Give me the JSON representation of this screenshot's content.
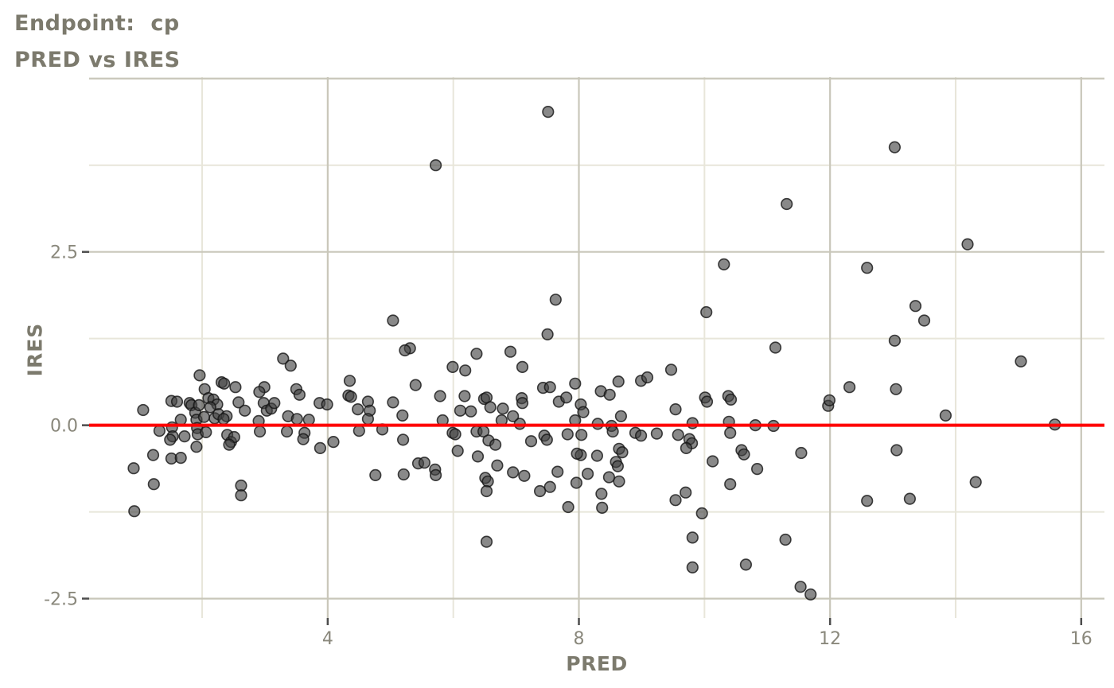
{
  "chart_data": {
    "type": "scatter",
    "title": "Endpoint:  cp",
    "subtitle": "PRED vs IRES",
    "xlabel": "PRED",
    "ylabel": "IRES",
    "x_ticks": [
      4,
      8,
      12,
      16
    ],
    "x_tick_labels": [
      "4",
      "8",
      "12",
      "16"
    ],
    "x_minor": [
      2,
      6,
      10,
      14
    ],
    "y_ticks": [
      2.5,
      0.0,
      -2.5
    ],
    "y_tick_labels": [
      "2.5",
      "0.0",
      "-2.5"
    ],
    "y_major_unlabeled": [
      5.0
    ],
    "y_minor": [
      3.75,
      1.25,
      -1.25
    ],
    "xlim": [
      0.2,
      16.37
    ],
    "ylim": [
      -2.78,
      5.02
    ],
    "grid": "on",
    "legend": "none",
    "refline": {
      "y": 0.0
    },
    "points": [
      [
        5.72,
        3.75
      ],
      [
        7.51,
        4.52
      ],
      [
        13.03,
        4.01
      ],
      [
        11.31,
        3.19
      ],
      [
        10.31,
        2.32
      ],
      [
        14.19,
        2.61
      ],
      [
        12.59,
        2.27
      ],
      [
        5.04,
        1.51
      ],
      [
        7.63,
        1.81
      ],
      [
        10.03,
        1.63
      ],
      [
        13.36,
        1.72
      ],
      [
        13.5,
        1.51
      ],
      [
        7.5,
        1.31
      ],
      [
        13.03,
        1.22
      ],
      [
        5.31,
        1.11
      ],
      [
        6.91,
        1.06
      ],
      [
        11.13,
        1.12
      ],
      [
        5.23,
        1.08
      ],
      [
        6.37,
        1.03
      ],
      [
        1.06,
        0.22
      ],
      [
        1.22,
        -0.43
      ],
      [
        0.91,
        -0.62
      ],
      [
        1.23,
        -0.85
      ],
      [
        0.92,
        -1.24
      ],
      [
        1.32,
        -0.08
      ],
      [
        1.51,
        0.35
      ],
      [
        1.6,
        0.34
      ],
      [
        1.52,
        -0.03
      ],
      [
        1.53,
        -0.16
      ],
      [
        1.49,
        -0.21
      ],
      [
        1.66,
        0.08
      ],
      [
        1.72,
        -0.16
      ],
      [
        1.51,
        -0.48
      ],
      [
        1.66,
        -0.47
      ],
      [
        1.8,
        0.32
      ],
      [
        1.83,
        0.29
      ],
      [
        1.89,
        0.18
      ],
      [
        1.96,
        0.72
      ],
      [
        1.95,
        0.29
      ],
      [
        1.91,
        0.08
      ],
      [
        1.92,
        -0.04
      ],
      [
        1.93,
        -0.13
      ],
      [
        2.03,
        0.12
      ],
      [
        2.06,
        -0.1
      ],
      [
        1.91,
        -0.31
      ],
      [
        2.04,
        0.52
      ],
      [
        2.1,
        0.39
      ],
      [
        2.18,
        0.37
      ],
      [
        2.24,
        0.3
      ],
      [
        2.13,
        0.26
      ],
      [
        2.2,
        0.1
      ],
      [
        2.26,
        0.16
      ],
      [
        2.31,
        0.62
      ],
      [
        2.35,
        0.6
      ],
      [
        2.53,
        0.55
      ],
      [
        2.58,
        0.33
      ],
      [
        2.68,
        0.21
      ],
      [
        2.39,
        0.13
      ],
      [
        2.34,
        0.09
      ],
      [
        2.4,
        -0.14
      ],
      [
        2.46,
        -0.24
      ],
      [
        2.51,
        -0.17
      ],
      [
        2.43,
        -0.28
      ],
      [
        2.62,
        -0.87
      ],
      [
        2.62,
        -1.01
      ],
      [
        2.9,
        0.06
      ],
      [
        2.92,
        -0.09
      ],
      [
        2.98,
        0.32
      ],
      [
        2.99,
        0.55
      ],
      [
        2.91,
        0.48
      ],
      [
        3.03,
        0.21
      ],
      [
        3.1,
        0.24
      ],
      [
        3.15,
        0.32
      ],
      [
        3.29,
        0.96
      ],
      [
        3.41,
        0.86
      ],
      [
        3.5,
        0.52
      ],
      [
        3.55,
        0.44
      ],
      [
        3.37,
        0.13
      ],
      [
        3.51,
        0.09
      ],
      [
        3.7,
        0.08
      ],
      [
        3.35,
        -0.09
      ],
      [
        3.63,
        -0.11
      ],
      [
        3.61,
        -0.2
      ],
      [
        3.87,
        0.32
      ],
      [
        3.99,
        0.3
      ],
      [
        3.88,
        -0.33
      ],
      [
        4.09,
        -0.24
      ],
      [
        4.35,
        0.64
      ],
      [
        4.33,
        0.43
      ],
      [
        4.37,
        0.41
      ],
      [
        4.48,
        0.23
      ],
      [
        4.64,
        0.34
      ],
      [
        4.67,
        0.21
      ],
      [
        4.64,
        0.09
      ],
      [
        4.5,
        -0.08
      ],
      [
        4.87,
        -0.06
      ],
      [
        4.76,
        -0.72
      ],
      [
        5.04,
        0.33
      ],
      [
        5.19,
        0.14
      ],
      [
        5.2,
        -0.21
      ],
      [
        5.4,
        0.58
      ],
      [
        5.44,
        -0.55
      ],
      [
        5.54,
        -0.54
      ],
      [
        5.71,
        -0.64
      ],
      [
        5.79,
        0.42
      ],
      [
        5.83,
        0.07
      ],
      [
        5.99,
        0.84
      ],
      [
        5.99,
        -0.11
      ],
      [
        5.21,
        -0.71
      ],
      [
        5.72,
        -0.72
      ],
      [
        6.19,
        0.79
      ],
      [
        6.18,
        0.42
      ],
      [
        6.49,
        0.38
      ],
      [
        6.53,
        0.4
      ],
      [
        6.59,
        0.26
      ],
      [
        6.79,
        0.24
      ],
      [
        6.11,
        0.21
      ],
      [
        6.28,
        0.2
      ],
      [
        6.77,
        0.07
      ],
      [
        6.95,
        0.13
      ],
      [
        6.03,
        -0.13
      ],
      [
        6.37,
        -0.09
      ],
      [
        6.48,
        -0.09
      ],
      [
        6.56,
        -0.22
      ],
      [
        6.67,
        -0.28
      ],
      [
        6.07,
        -0.37
      ],
      [
        6.39,
        -0.45
      ],
      [
        6.7,
        -0.58
      ],
      [
        6.95,
        -0.68
      ],
      [
        6.51,
        -0.76
      ],
      [
        6.55,
        -0.81
      ],
      [
        6.53,
        -0.95
      ],
      [
        6.53,
        -1.68
      ],
      [
        7.1,
        0.84
      ],
      [
        7.09,
        0.39
      ],
      [
        7.1,
        0.32
      ],
      [
        7.06,
        0.02
      ],
      [
        7.43,
        0.54
      ],
      [
        7.54,
        0.55
      ],
      [
        7.68,
        0.34
      ],
      [
        7.8,
        0.4
      ],
      [
        7.24,
        -0.23
      ],
      [
        7.45,
        -0.15
      ],
      [
        7.49,
        -0.21
      ],
      [
        7.82,
        -0.13
      ],
      [
        7.13,
        -0.73
      ],
      [
        7.66,
        -0.67
      ],
      [
        7.38,
        -0.95
      ],
      [
        7.54,
        -0.89
      ],
      [
        7.83,
        -1.18
      ],
      [
        7.94,
        0.6
      ],
      [
        8.03,
        0.3
      ],
      [
        8.07,
        0.19
      ],
      [
        7.94,
        0.07
      ],
      [
        8.3,
        0.02
      ],
      [
        8.35,
        0.49
      ],
      [
        8.49,
        0.44
      ],
      [
        8.63,
        0.63
      ],
      [
        8.52,
        -0.01
      ],
      [
        8.54,
        -0.09
      ],
      [
        8.67,
        0.13
      ],
      [
        8.04,
        -0.14
      ],
      [
        8.29,
        -0.44
      ],
      [
        8.03,
        -0.43
      ],
      [
        7.97,
        -0.41
      ],
      [
        8.64,
        -0.34
      ],
      [
        8.69,
        -0.39
      ],
      [
        8.59,
        -0.53
      ],
      [
        8.62,
        -0.59
      ],
      [
        8.14,
        -0.7
      ],
      [
        8.48,
        -0.75
      ],
      [
        8.64,
        -0.81
      ],
      [
        7.96,
        -0.83
      ],
      [
        8.36,
        -0.99
      ],
      [
        8.37,
        -1.19
      ],
      [
        8.99,
        0.64
      ],
      [
        9.09,
        0.69
      ],
      [
        9.47,
        0.8
      ],
      [
        8.9,
        -0.11
      ],
      [
        8.99,
        -0.15
      ],
      [
        9.24,
        -0.12
      ],
      [
        9.58,
        -0.14
      ],
      [
        9.54,
        0.23
      ],
      [
        9.81,
        0.03
      ],
      [
        9.76,
        -0.2
      ],
      [
        9.8,
        -0.26
      ],
      [
        9.71,
        -0.33
      ],
      [
        9.54,
        -1.08
      ],
      [
        9.7,
        -0.97
      ],
      [
        9.96,
        -1.27
      ],
      [
        9.81,
        -1.62
      ],
      [
        9.81,
        -2.05
      ],
      [
        10.01,
        0.4
      ],
      [
        10.04,
        0.34
      ],
      [
        10.38,
        0.42
      ],
      [
        10.42,
        0.37
      ],
      [
        10.39,
        0.05
      ],
      [
        10.41,
        -0.11
      ],
      [
        10.59,
        -0.36
      ],
      [
        10.63,
        -0.42
      ],
      [
        10.13,
        -0.52
      ],
      [
        10.84,
        -0.63
      ],
      [
        10.41,
        -0.85
      ],
      [
        10.66,
        -2.01
      ],
      [
        10.81,
        0.0
      ],
      [
        11.1,
        -0.01
      ],
      [
        11.54,
        -0.4
      ],
      [
        11.29,
        -1.65
      ],
      [
        11.53,
        -2.33
      ],
      [
        11.69,
        -2.44
      ],
      [
        11.97,
        0.28
      ],
      [
        11.99,
        0.36
      ],
      [
        12.31,
        0.55
      ],
      [
        12.59,
        -1.09
      ],
      [
        13.05,
        0.52
      ],
      [
        13.06,
        -0.36
      ],
      [
        13.27,
        -1.06
      ],
      [
        13.84,
        0.14
      ],
      [
        14.32,
        -0.82
      ],
      [
        15.04,
        0.92
      ],
      [
        15.58,
        0.01
      ]
    ],
    "colors": {
      "title": "#7c7a6d",
      "axis_label": "#7c7a6d",
      "tick_label": "#8a887c",
      "grid_major": "#c9c7ba",
      "grid_minor": "#e8e6da",
      "tick_mark": "#4d4d4d",
      "point_fill": "#404040",
      "point_stroke": "#141414",
      "refline": "#ff0000",
      "background": "#ffffff"
    }
  }
}
